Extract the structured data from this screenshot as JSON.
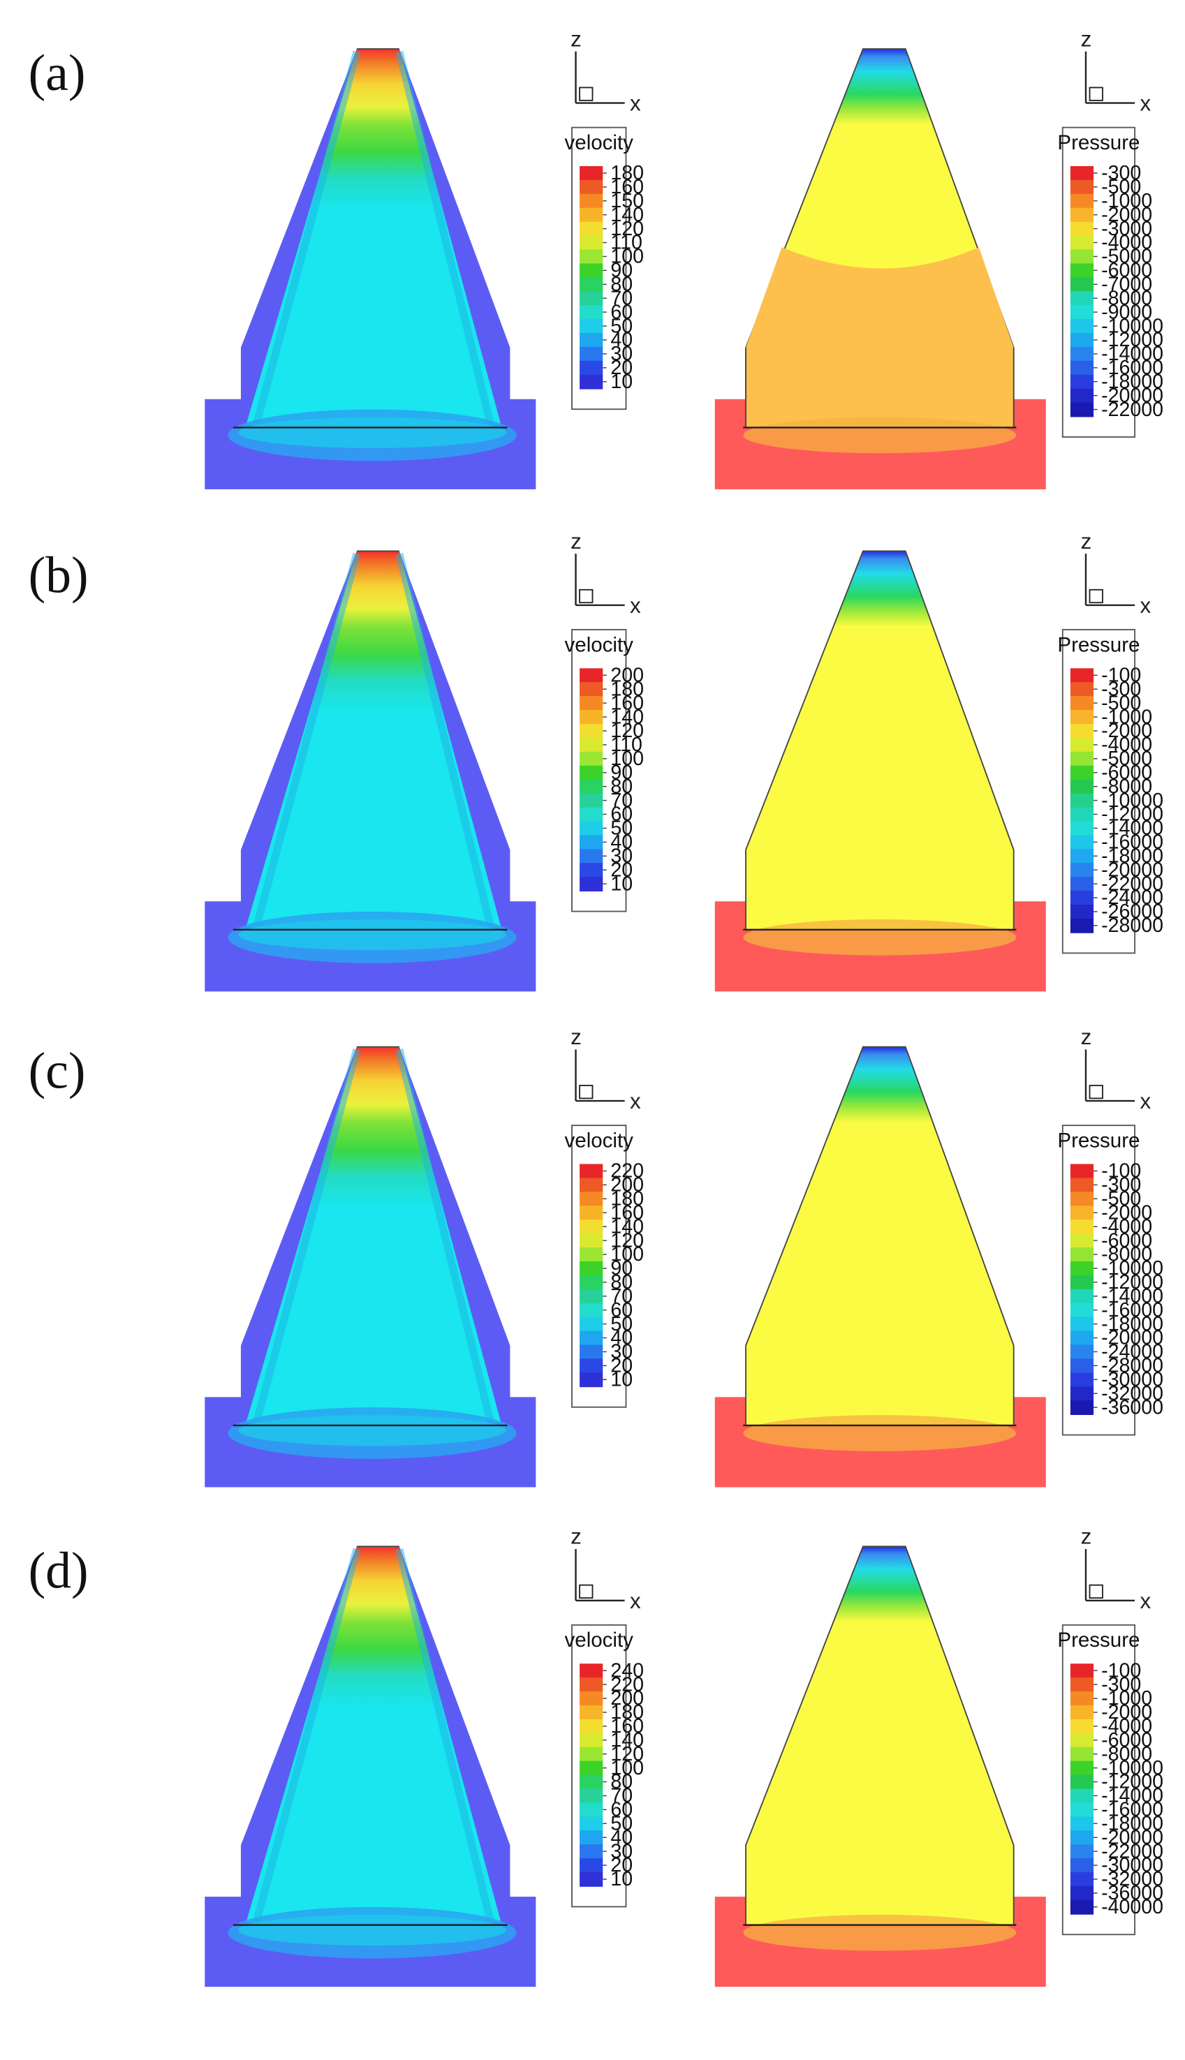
{
  "figure": {
    "axis_labels": {
      "vertical": "z",
      "horizontal": "x"
    },
    "colors": {
      "velocity_background": "#5c5cf5",
      "velocity_mid": "#19e6ee",
      "velocity_top": "#f6312a",
      "pressure_background": "#ff5a5a",
      "pressure_mid": "#fbfb44",
      "pressure_top": "#2030e0",
      "pressure_lower_a": "#fdc04c"
    },
    "rows": [
      {
        "label": "(a)",
        "velocity": {
          "title": "velocity",
          "levels": [
            "180",
            "160",
            "150",
            "140",
            "120",
            "110",
            "100",
            "90",
            "80",
            "70",
            "60",
            "50",
            "40",
            "30",
            "20",
            "10"
          ]
        },
        "pressure": {
          "title": "Pressure",
          "levels": [
            "-300",
            "-500",
            "-1000",
            "-2000",
            "-3000",
            "-4000",
            "-5000",
            "-6000",
            "-7000",
            "-8000",
            "-9000",
            "-10000",
            "-12000",
            "-14000",
            "-16000",
            "-18000",
            "-20000",
            "-22000"
          ]
        }
      },
      {
        "label": "(b)",
        "velocity": {
          "title": "velocity",
          "levels": [
            "200",
            "180",
            "160",
            "140",
            "120",
            "110",
            "100",
            "90",
            "80",
            "70",
            "60",
            "50",
            "40",
            "30",
            "20",
            "10"
          ]
        },
        "pressure": {
          "title": "Pressure",
          "levels": [
            "-100",
            "-300",
            "-500",
            "-1000",
            "-2000",
            "-4000",
            "-5000",
            "-6000",
            "-8000",
            "-10000",
            "-12000",
            "-14000",
            "-16000",
            "-18000",
            "-20000",
            "-22000",
            "-24000",
            "-26000",
            "-28000"
          ]
        }
      },
      {
        "label": "(c)",
        "velocity": {
          "title": "velocity",
          "levels": [
            "220",
            "200",
            "180",
            "160",
            "140",
            "120",
            "100",
            "90",
            "80",
            "70",
            "60",
            "50",
            "40",
            "30",
            "20",
            "10"
          ]
        },
        "pressure": {
          "title": "Pressure",
          "levels": [
            "-100",
            "-300",
            "-500",
            "-2000",
            "-4000",
            "-6000",
            "-8000",
            "-10000",
            "-12000",
            "-14000",
            "-16000",
            "-18000",
            "-20000",
            "-24000",
            "-28000",
            "-30000",
            "-32000",
            "-36000"
          ]
        }
      },
      {
        "label": "(d)",
        "velocity": {
          "title": "velocity",
          "levels": [
            "240",
            "220",
            "200",
            "180",
            "160",
            "140",
            "120",
            "100",
            "80",
            "70",
            "60",
            "50",
            "40",
            "30",
            "20",
            "10"
          ]
        },
        "pressure": {
          "title": "Pressure",
          "levels": [
            "-100",
            "-300",
            "-1000",
            "-2000",
            "-4000",
            "-6000",
            "-8000",
            "-10000",
            "-12000",
            "-14000",
            "-16000",
            "-18000",
            "-20000",
            "-22000",
            "-30000",
            "-32000",
            "-36000",
            "-40000"
          ]
        }
      }
    ]
  }
}
